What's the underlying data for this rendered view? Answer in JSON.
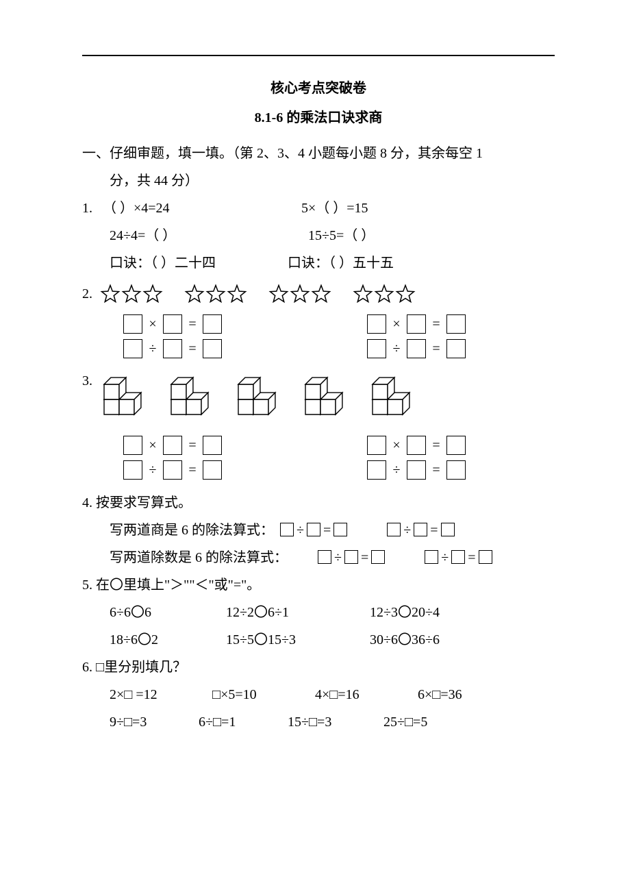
{
  "style": {
    "text_color": "#000000",
    "background_color": "#ffffff",
    "rule_color": "#000000",
    "box_border_color": "#000000",
    "font_family": "SimSun",
    "body_fontsize": 20,
    "title_fontsize": 20,
    "title_fontweight": "bold",
    "line_height": 2.0
  },
  "title1": "核心考点突破卷",
  "title2": "8.1-6 的乘法口诀求商",
  "section1": {
    "heading": "一、仔细审题，填一填。（第 2、3、4 小题每小题 8 分，其余每空 1",
    "heading_cont": "分，共 44 分）"
  },
  "q1": {
    "num": "1.",
    "a1": "（  ）×4=24",
    "a2": "5×（  ）=15",
    "b1": "24÷4=（  ）",
    "b2": "15÷5=（  ）",
    "c1": "口诀：（  ）二十四",
    "c2": "口诀：（  ）五十五"
  },
  "q2": {
    "num": "2.",
    "stars": {
      "groups": 4,
      "per_group": 3
    },
    "star_style": {
      "stroke": "#000000",
      "fill": "none",
      "stroke_width": 1.2
    },
    "ops": {
      "mul": "×",
      "div": "÷",
      "eq": "="
    }
  },
  "q3": {
    "num": "3.",
    "cubes": {
      "count": 5
    },
    "cube_style": {
      "stroke": "#000000",
      "fill": "#ffffff",
      "stroke_width": 1.4
    },
    "ops": {
      "mul": "×",
      "div": "÷",
      "eq": "="
    }
  },
  "q4": {
    "num": "4.",
    "title": "按要求写算式。",
    "line1_text": "写两道商是 6 的除法算式：",
    "line2_text": "写两道除数是 6 的除法算式：",
    "ops": {
      "div": "÷",
      "eq": "="
    }
  },
  "q5": {
    "num": "5.",
    "title": "在〇里填上\"＞\"\"＜\"或\"=\"。",
    "row1": [
      "6÷6〇6",
      "12÷2〇6÷1",
      "12÷3〇20÷4"
    ],
    "row2": [
      "18÷6〇2",
      "15÷5〇15÷3",
      "30÷6〇36÷6"
    ]
  },
  "q6": {
    "num": "6.",
    "title": "□里分别填几？",
    "row1": [
      "2×□ =12",
      "□×5=10",
      "4×□=16",
      "6×□=36"
    ],
    "row2": [
      "9÷□=3",
      "6÷□=1",
      "15÷□=3",
      "25÷□=5"
    ]
  }
}
